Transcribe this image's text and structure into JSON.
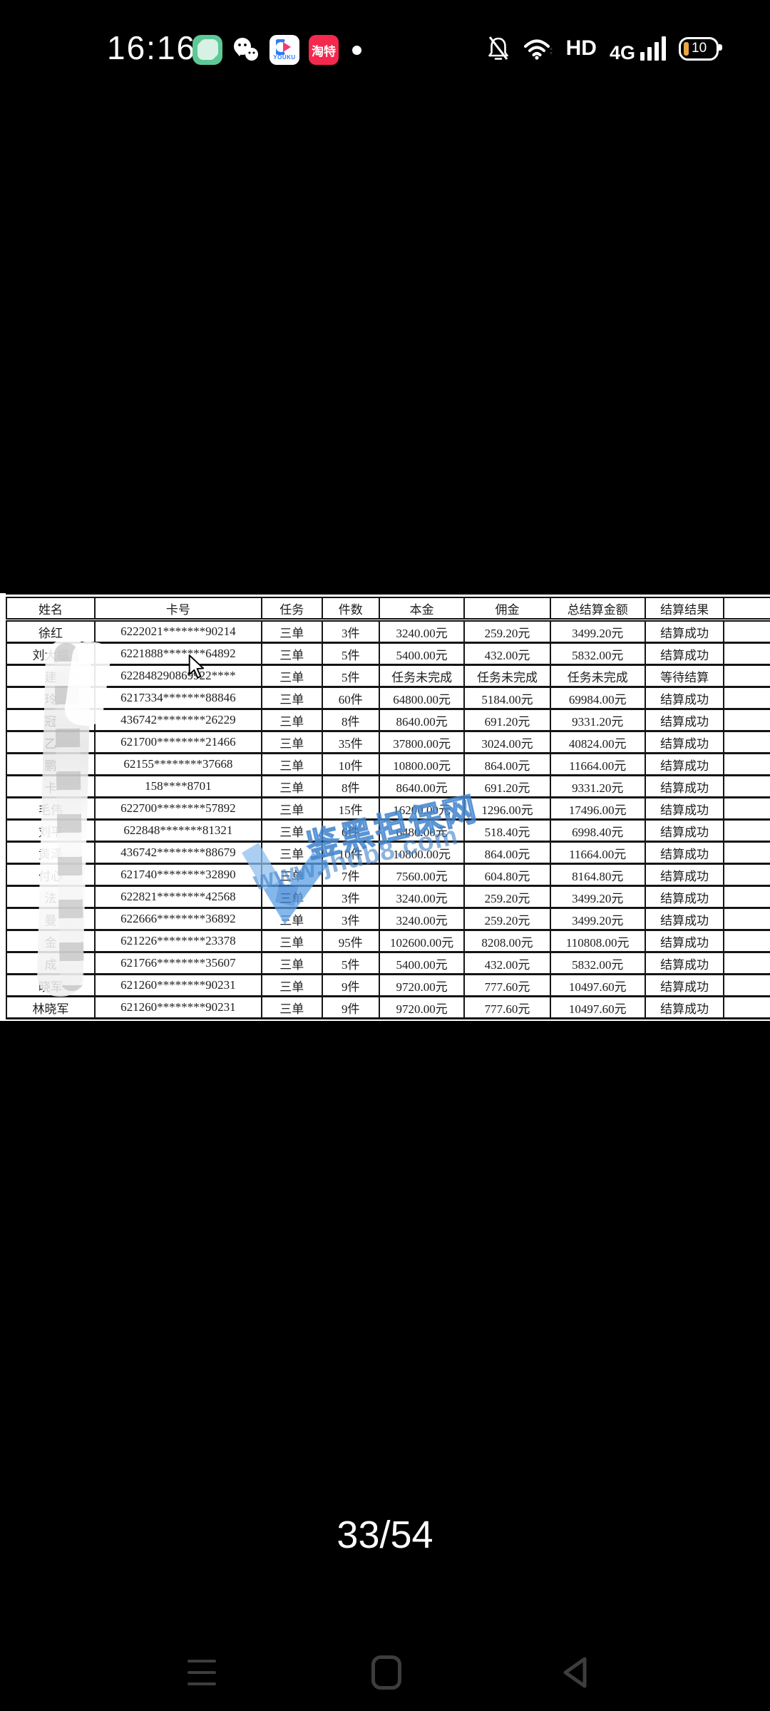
{
  "status_bar": {
    "time": "16:16",
    "hd": "HD",
    "network": "4G",
    "battery_percent": "10",
    "youku_label": "YOUKU",
    "taote_label": "淘特",
    "icons": [
      "notes-app-icon",
      "wechat-icon",
      "youku-icon",
      "taote-app-icon",
      "notification-dot",
      "bell-muted-icon",
      "wifi-icon",
      "battery-icon"
    ]
  },
  "table": {
    "headers": [
      "姓名",
      "卡号",
      "任务",
      "件数",
      "本金",
      "佣金",
      "总结算金额",
      "结算结果"
    ],
    "rows": [
      [
        "徐红",
        "6222021*******90214",
        "三单",
        "3件",
        "3240.00元",
        "259.20元",
        "3499.20元",
        "结算成功"
      ],
      [
        "刘大福",
        "6221888*******64892",
        "三单",
        "5件",
        "5400.00元",
        "432.00元",
        "5832.00元",
        "结算成功"
      ],
      [
        "建",
        "622848290869922****",
        "三单",
        "5件",
        "任务未完成",
        "任务未完成",
        "任务未完成",
        "等待结算"
      ],
      [
        "玲",
        "6217334*******88846",
        "三单",
        "60件",
        "64800.00元",
        "5184.00元",
        "69984.00元",
        "结算成功"
      ],
      [
        "冠",
        "436742********26229",
        "三单",
        "8件",
        "8640.00元",
        "691.20元",
        "9331.20元",
        "结算成功"
      ],
      [
        "乙",
        "621700********21466",
        "三单",
        "35件",
        "37800.00元",
        "3024.00元",
        "40824.00元",
        "结算成功"
      ],
      [
        "鹏",
        "62155********37668",
        "三单",
        "10件",
        "10800.00元",
        "864.00元",
        "11664.00元",
        "结算成功"
      ],
      [
        "卡",
        "158****8701",
        "三单",
        "8件",
        "8640.00元",
        "691.20元",
        "9331.20元",
        "结算成功"
      ],
      [
        "毛伟",
        "622700********57892",
        "三单",
        "15件",
        "16200.00元",
        "1296.00元",
        "17496.00元",
        "结算成功"
      ],
      [
        "刘平",
        "622848*******81321",
        "三单",
        "6件",
        "6480.00元",
        "518.40元",
        "6998.40元",
        "结算成功"
      ],
      [
        "黄泽",
        "436742********88679",
        "三单",
        "10件",
        "10800.00元",
        "864.00元",
        "11664.00元",
        "结算成功"
      ],
      [
        "付心",
        "621740********32890",
        "三单",
        "7件",
        "7560.00元",
        "604.80元",
        "8164.80元",
        "结算成功"
      ],
      [
        "法",
        "622821********42568",
        "三单",
        "3件",
        "3240.00元",
        "259.20元",
        "3499.20元",
        "结算成功"
      ],
      [
        "曼",
        "622666********36892",
        "三单",
        "3件",
        "3240.00元",
        "259.20元",
        "3499.20元",
        "结算成功"
      ],
      [
        "金",
        "621226********23378",
        "三单",
        "95件",
        "102600.00元",
        "8208.00元",
        "110808.00元",
        "结算成功"
      ],
      [
        "成",
        "621766********35607",
        "三单",
        "5件",
        "5400.00元",
        "432.00元",
        "5832.00元",
        "结算成功"
      ],
      [
        "晓军",
        "621260********90231",
        "三单",
        "9件",
        "9720.00元",
        "777.60元",
        "10497.60元",
        "结算成功"
      ],
      [
        "林晓军",
        "621260********90231",
        "三单",
        "9件",
        "9720.00元",
        "777.60元",
        "10497.60元",
        "结算成功"
      ]
    ]
  },
  "watermark": {
    "brand": "鉴黑担保网",
    "url": "www.jhdb8.com",
    "color": "#4b93e0"
  },
  "pager": {
    "label": "33/54"
  },
  "colors": {
    "background": "#000000",
    "table_bg": "#ffffff",
    "table_border": "#161616",
    "watermark_blue": "#4b93e0",
    "battery_low": "#e9a83e",
    "taote_red": "#f5284e",
    "notes_green": "#5ec897",
    "youku_blue": "#2f7bf5",
    "youku_pink": "#f43a74"
  }
}
